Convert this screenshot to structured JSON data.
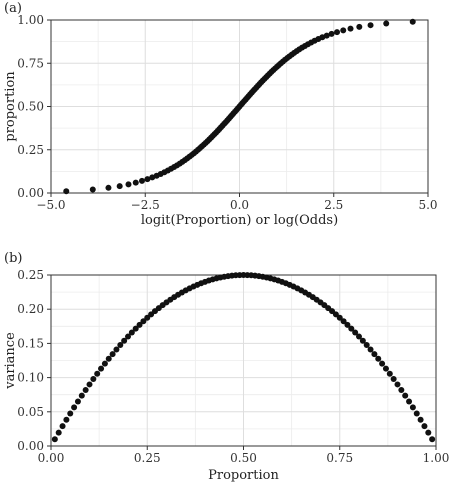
{
  "panels": {
    "a": "(a)",
    "b": "(b)"
  },
  "chart_data": [
    {
      "type": "scatter",
      "panel": "(a)",
      "xlabel": "logit(Proportion) or log(Odds)",
      "ylabel": "proportion",
      "xlim": [
        -5.0,
        5.0
      ],
      "ylim": [
        0.0,
        1.0
      ],
      "xticks": [
        -5.0,
        -2.5,
        0.0,
        2.5,
        5.0
      ],
      "xtick_labels": [
        "−5.0",
        "−2.5",
        "0.0",
        "2.5",
        "5.0"
      ],
      "yticks": [
        0.0,
        0.25,
        0.5,
        0.75,
        1.0
      ],
      "ytick_labels": [
        "0.00",
        "0.25",
        "0.50",
        "0.75",
        "1.00"
      ],
      "grid": true,
      "series": [
        {
          "relation": "y = 1/(1+exp(-x)), x = logit(p) for p = 0.01 to 0.99 step 0.01",
          "p_start": 0.01,
          "p_end": 0.99,
          "p_step": 0.01
        }
      ],
      "colors": {
        "points": "#111111",
        "grid": "#dedede",
        "panel_border": "#333333"
      }
    },
    {
      "type": "scatter",
      "panel": "(b)",
      "xlabel": "Proportion",
      "ylabel": "variance",
      "xlim": [
        0.0,
        1.0
      ],
      "ylim": [
        0.0,
        0.25
      ],
      "xticks": [
        0.0,
        0.25,
        0.5,
        0.75,
        1.0
      ],
      "xtick_labels": [
        "0.00",
        "0.25",
        "0.50",
        "0.75",
        "1.00"
      ],
      "yticks": [
        0.0,
        0.05,
        0.1,
        0.15,
        0.2,
        0.25
      ],
      "ytick_labels": [
        "0.00",
        "0.05",
        "0.10",
        "0.15",
        "0.20",
        "0.25"
      ],
      "grid": true,
      "series": [
        {
          "relation": "y = p*(1-p) for p = 0.01 to 0.99 step 0.01",
          "p_start": 0.01,
          "p_end": 0.99,
          "p_step": 0.01
        }
      ],
      "colors": {
        "points": "#111111",
        "grid": "#dedede",
        "panel_border": "#333333"
      }
    }
  ]
}
